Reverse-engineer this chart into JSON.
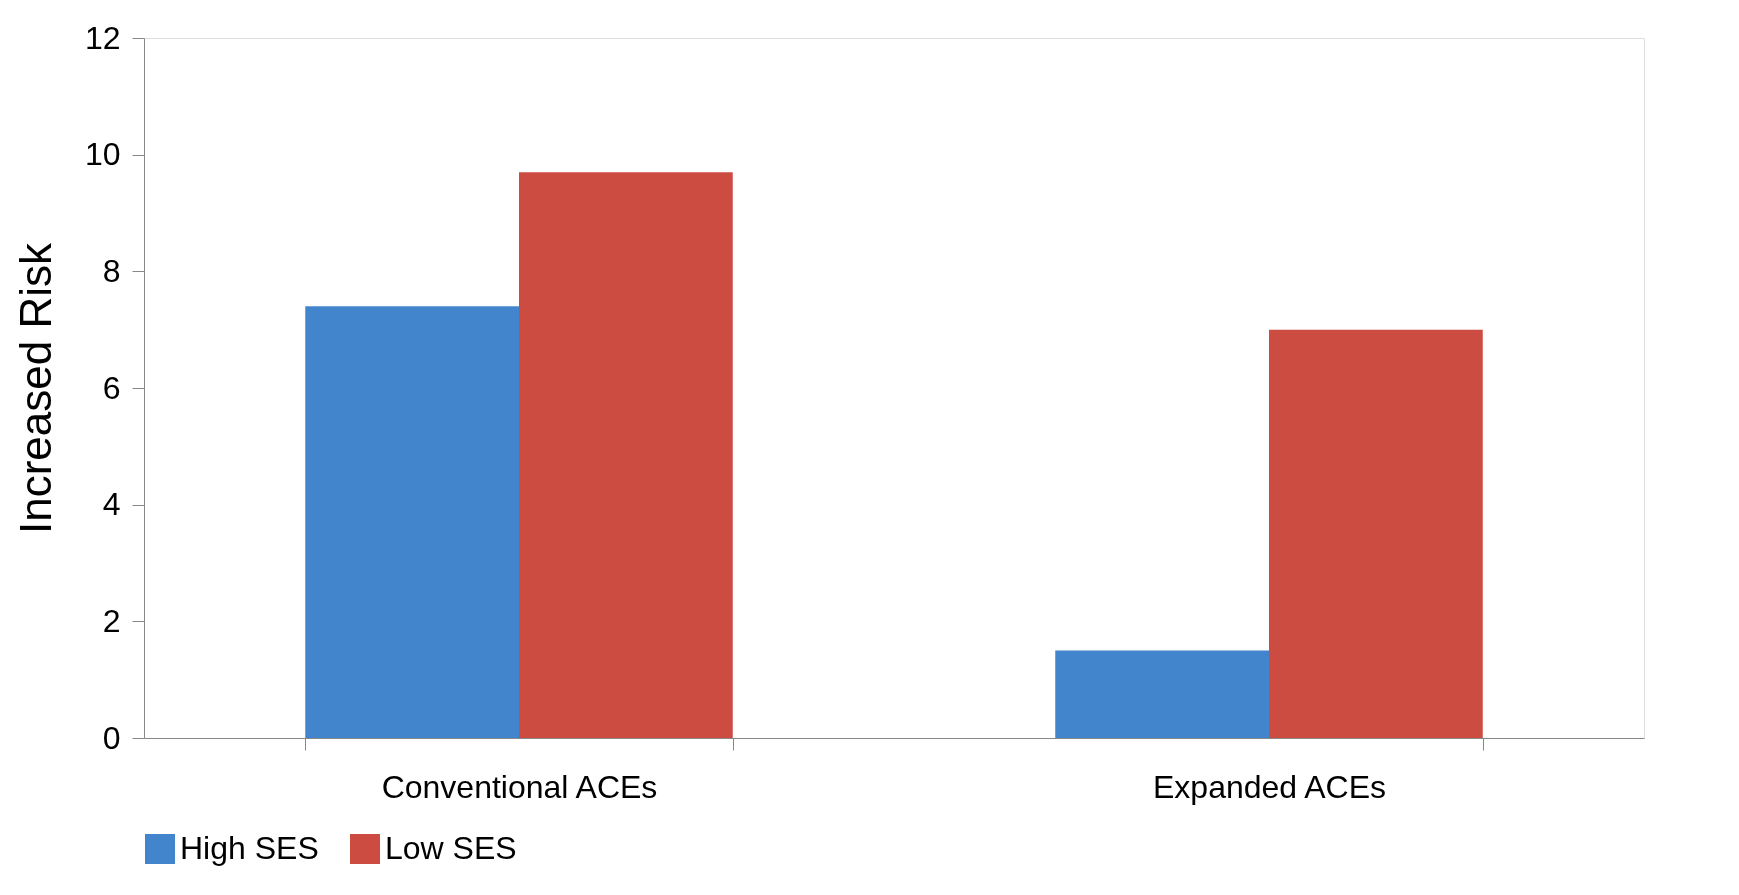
{
  "chart_data": {
    "type": "bar",
    "ylabel": "Increased Risk",
    "categories": [
      "Conventional ACEs",
      "Expanded ACEs"
    ],
    "series": [
      {
        "name": "High SES",
        "color": "#4385cc",
        "values": [
          7.4,
          1.5
        ]
      },
      {
        "name": "Low SES",
        "color": "#cc4c42",
        "values": [
          9.7,
          7.0
        ]
      }
    ],
    "ylim": [
      0,
      12
    ],
    "yticks": [
      0,
      2,
      4,
      6,
      8,
      10,
      12
    ],
    "grid": false,
    "legend": "bottom"
  }
}
